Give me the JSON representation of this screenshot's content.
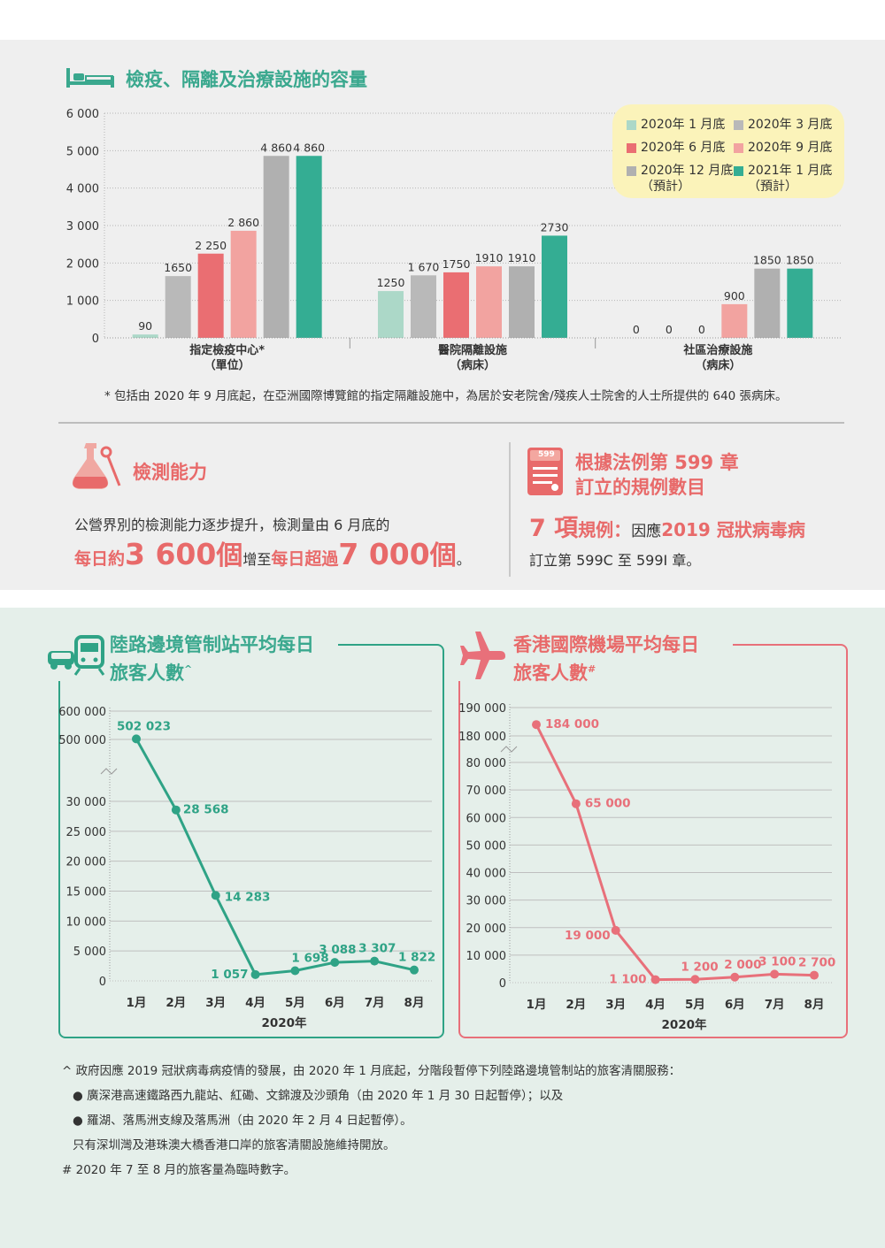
{
  "capacity": {
    "title": "檢疫、隔離及治療設施的容量",
    "footnote": "* 包括由 2020 年 9 月底起，在亞洲國際博覽館的指定隔離設施中，為居於安老院舍/殘疾人士院舍的人士所提供的 640 張病床。"
  },
  "chart_data": [
    {
      "type": "bar",
      "y_ticks": [
        "6 000",
        "5 000",
        "4 000",
        "3 000",
        "2 000",
        "1 000",
        "0"
      ],
      "ylim": [
        0,
        6000
      ],
      "categories": [
        {
          "name": "指定檢疫中心*",
          "unit": "（單位）"
        },
        {
          "name": "醫院隔離設施",
          "unit": "（病床）"
        },
        {
          "name": "社區治療設施",
          "unit": "（病床）"
        }
      ],
      "series": [
        {
          "name": "2020年 1 月底",
          "color": "#acd8c8",
          "values": [
            90,
            1250,
            0
          ],
          "labels": [
            "90",
            "1250",
            "0"
          ]
        },
        {
          "name": "2020年 3 月底",
          "color": "#b9b9b9",
          "values": [
            1650,
            1670,
            0
          ],
          "labels": [
            "1650",
            "1 670",
            "0"
          ]
        },
        {
          "name": "2020年 6 月底",
          "color": "#ea6e72",
          "values": [
            2250,
            1750,
            0
          ],
          "labels": [
            "2 250",
            "1750",
            "0"
          ]
        },
        {
          "name": "2020年 9 月底",
          "color": "#f2a3a0",
          "values": [
            2860,
            1910,
            900
          ],
          "labels": [
            "2 860",
            "1910",
            "900"
          ]
        },
        {
          "name": "2020年 12 月底",
          "note": "（預計）",
          "color": "#b0b0b0",
          "values": [
            4860,
            1910,
            1850
          ],
          "labels": [
            "4 860",
            "1910",
            "1850"
          ]
        },
        {
          "name": "2021年 1 月底",
          "note": "（預計）",
          "color": "#34ad93",
          "values": [
            4860,
            2730,
            1850
          ],
          "labels": [
            "4 860",
            "2730",
            "1850"
          ]
        }
      ],
      "legend_position": "top-right"
    },
    {
      "type": "line",
      "title": "陸路邊境管制站平均每日旅客人數",
      "title_mark": "^",
      "color": "#2fa386",
      "x": [
        "1月",
        "2月",
        "3月",
        "4月",
        "5月",
        "6月",
        "7月",
        "8月"
      ],
      "xlabel": "2020年",
      "values": [
        502023,
        28568,
        14283,
        1057,
        1698,
        3088,
        3307,
        1822
      ],
      "labels": [
        "502 023",
        "28 568",
        "14 283",
        "1 057",
        "1 698",
        "3 088",
        "3 307",
        "1 822"
      ],
      "y_ticks_upper": [
        "600 000",
        "500 000"
      ],
      "y_ticks_lower": [
        "30 000",
        "25 000",
        "20 000",
        "15 000",
        "10 000",
        "5 000",
        "0"
      ],
      "axis_break": true
    },
    {
      "type": "line",
      "title": "香港國際機場平均每日旅客人數",
      "title_mark": "#",
      "color": "#e8707a",
      "x": [
        "1月",
        "2月",
        "3月",
        "4月",
        "5月",
        "6月",
        "7月",
        "8月"
      ],
      "xlabel": "2020年",
      "values": [
        184000,
        65000,
        19000,
        1100,
        1200,
        2000,
        3100,
        2700
      ],
      "labels": [
        "184 000",
        "65 000",
        "19 000",
        "1 100",
        "1 200",
        "2 000",
        "3 100",
        "2 700"
      ],
      "y_ticks_upper": [
        "190 000",
        "180 000"
      ],
      "y_ticks_lower": [
        "80 000",
        "70 000",
        "60 000",
        "50 000",
        "40 000",
        "30 000",
        "20 000",
        "10 000",
        "0"
      ],
      "axis_break": true
    }
  ],
  "testing": {
    "title": "檢測能力",
    "line1": "公營界別的檢測能力逐步提升，檢測量由 6 月底的",
    "a1": "每日約",
    "a2": "3 600",
    "a3": "個",
    "a4": "增至",
    "a5": "每日超過",
    "a6": "7 000",
    "a7": "個",
    "a8": "。"
  },
  "regulations": {
    "icon_text": "599",
    "title1": "根據法例第 599 章",
    "title2": "訂立的規例數目",
    "b1": "7 項",
    "b2": "規例：",
    "b3": "因應",
    "b4": "2019 冠狀病毒病",
    "line2": "訂立第 599C 至 599I 章。"
  },
  "notes": {
    "n1": "^ 政府因應 2019 冠狀病毒病疫情的發展，由 2020 年 1 月底起，分階段暫停下列陸路邊境管制站的旅客清關服務：",
    "b1": "廣深港高速鐵路西九龍站、紅磡、文錦渡及沙頭角（由 2020 年 1 月 30 日起暫停）；以及",
    "b2": "羅湖、落馬洲支線及落馬洲（由 2020 年 2 月 4 日起暫停）。",
    "n2": "只有深圳灣及港珠澳大橋香港口岸的旅客清關設施維持開放。",
    "n3": "# 2020 年 7 至 8 月的旅客量為臨時數字。"
  }
}
